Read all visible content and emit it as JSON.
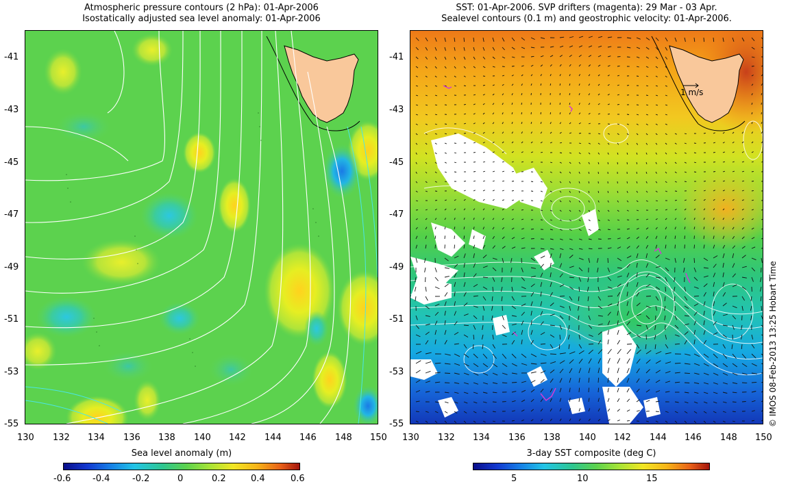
{
  "left_panel": {
    "title_line1": "Atmospheric pressure contours (2 hPa): 01-Apr-2006",
    "title_line2": "Isostatically adjusted sea level anomaly: 01-Apr-2006",
    "colorbar_label": "Sea level anomaly (m)",
    "colorbar_ticks": [
      "-0.6",
      "-0.4",
      "-0.2",
      "0",
      "0.2",
      "0.4",
      "0.6"
    ]
  },
  "right_panel": {
    "title_line1": "SST: 01-Apr-2006. SVP drifters (magenta): 29 Mar - 03 Apr.",
    "title_line2": "Sealevel contours (0.1 m) and geostrophic velocity: 01-Apr-2006.",
    "velocity_scale_label": "1 m/s",
    "colorbar_label": "3-day SST composite (deg C)",
    "colorbar_ticks": [
      "5",
      "10",
      "15"
    ]
  },
  "axes": {
    "y_ticks": [
      "-41",
      "-43",
      "-45",
      "-47",
      "-49",
      "-51",
      "-53",
      "-55"
    ],
    "x_ticks": [
      "130",
      "132",
      "134",
      "136",
      "138",
      "140",
      "142",
      "144",
      "146",
      "148",
      "150"
    ]
  },
  "credit": "© IMOS 08-Feb-2013 13:25 Hobart Time",
  "colors": {
    "land": "#f9c89b",
    "drifter": "#d23cd2"
  }
}
